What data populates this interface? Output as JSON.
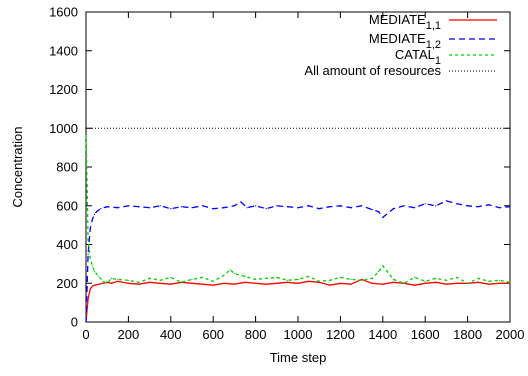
{
  "chart_data": {
    "type": "line",
    "xlabel": "Time step",
    "ylabel": "Concentration",
    "xlim": [
      0,
      2000
    ],
    "ylim": [
      0,
      1600
    ],
    "xticks": [
      0,
      200,
      400,
      600,
      800,
      1000,
      1200,
      1400,
      1600,
      1800,
      2000
    ],
    "yticks": [
      0,
      200,
      400,
      600,
      800,
      1000,
      1200,
      1400,
      1600
    ],
    "grid": false,
    "legend_position": "top-right",
    "series": [
      {
        "name": "MEDIATE",
        "subscript": "1,1",
        "color": "#ff0000",
        "dash": "solid",
        "x": [
          0,
          10,
          20,
          30,
          40,
          60,
          80,
          100,
          120,
          150,
          200,
          250,
          300,
          350,
          400,
          450,
          500,
          550,
          600,
          650,
          700,
          750,
          800,
          850,
          900,
          950,
          1000,
          1050,
          1100,
          1150,
          1200,
          1250,
          1300,
          1350,
          1400,
          1450,
          1500,
          1550,
          1600,
          1650,
          1700,
          1750,
          1800,
          1850,
          1900,
          1950,
          2000
        ],
        "values": [
          0,
          120,
          170,
          185,
          190,
          195,
          200,
          205,
          200,
          210,
          200,
          195,
          205,
          200,
          195,
          205,
          200,
          195,
          190,
          200,
          195,
          205,
          200,
          195,
          200,
          205,
          200,
          210,
          205,
          190,
          200,
          195,
          220,
          200,
          195,
          205,
          200,
          190,
          200,
          205,
          195,
          200,
          200,
          205,
          195,
          200,
          200
        ]
      },
      {
        "name": "MEDIATE",
        "subscript": "1,2",
        "color": "#0000ff",
        "dash": "6,4",
        "x": [
          0,
          10,
          20,
          30,
          40,
          50,
          70,
          100,
          150,
          200,
          250,
          300,
          350,
          400,
          450,
          500,
          550,
          600,
          650,
          700,
          730,
          760,
          800,
          850,
          900,
          950,
          1000,
          1050,
          1100,
          1150,
          1200,
          1250,
          1300,
          1350,
          1380,
          1400,
          1450,
          1500,
          1550,
          1600,
          1650,
          1700,
          1750,
          1800,
          1850,
          1900,
          1950,
          2000
        ],
        "values": [
          0,
          350,
          480,
          530,
          555,
          570,
          585,
          595,
          590,
          600,
          595,
          590,
          600,
          585,
          595,
          590,
          600,
          585,
          590,
          600,
          620,
          590,
          600,
          585,
          600,
          595,
          590,
          600,
          585,
          595,
          600,
          590,
          600,
          580,
          570,
          540,
          585,
          600,
          590,
          610,
          600,
          625,
          610,
          600,
          595,
          605,
          590,
          595
        ]
      },
      {
        "name": "CATAL",
        "subscript": "1",
        "color": "#00cc00",
        "dash": "3,3",
        "x": [
          0,
          5,
          10,
          20,
          30,
          40,
          60,
          80,
          100,
          120,
          150,
          200,
          250,
          300,
          350,
          400,
          450,
          500,
          550,
          600,
          650,
          680,
          700,
          750,
          800,
          850,
          900,
          950,
          1000,
          1050,
          1100,
          1150,
          1200,
          1250,
          1300,
          1350,
          1380,
          1400,
          1450,
          1500,
          1550,
          1600,
          1650,
          1700,
          1750,
          1800,
          1850,
          1900,
          1950,
          2000
        ],
        "values": [
          960,
          700,
          420,
          330,
          290,
          260,
          235,
          210,
          200,
          225,
          220,
          215,
          205,
          225,
          215,
          230,
          205,
          220,
          230,
          210,
          240,
          270,
          250,
          235,
          220,
          225,
          230,
          215,
          220,
          235,
          210,
          215,
          230,
          220,
          215,
          225,
          260,
          290,
          220,
          200,
          230,
          210,
          225,
          215,
          230,
          200,
          225,
          210,
          215,
          205
        ]
      },
      {
        "name": "All amount of resources",
        "color": "#000000",
        "dash": "1,2",
        "x": [
          0,
          2000
        ],
        "values": [
          1000,
          1000
        ]
      }
    ]
  }
}
